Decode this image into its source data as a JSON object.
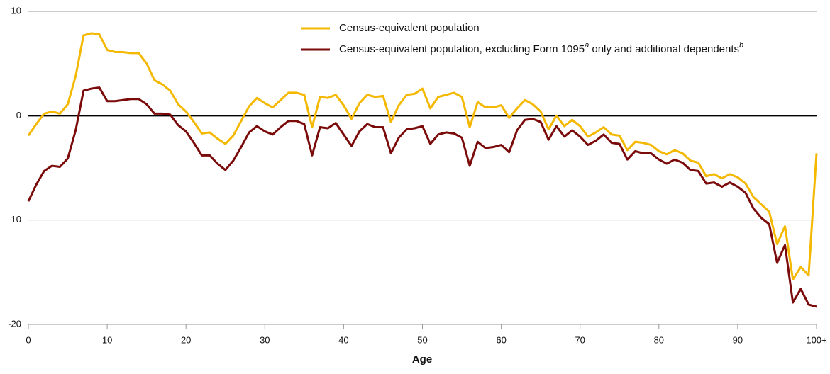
{
  "chart_data": {
    "type": "line",
    "xlabel": "Age",
    "x": [
      0,
      1,
      2,
      3,
      4,
      5,
      6,
      7,
      8,
      9,
      10,
      11,
      12,
      13,
      14,
      15,
      16,
      17,
      18,
      19,
      20,
      21,
      22,
      23,
      24,
      25,
      26,
      27,
      28,
      29,
      30,
      31,
      32,
      33,
      34,
      35,
      36,
      37,
      38,
      39,
      40,
      41,
      42,
      43,
      44,
      45,
      46,
      47,
      48,
      49,
      50,
      51,
      52,
      53,
      54,
      55,
      56,
      57,
      58,
      59,
      60,
      61,
      62,
      63,
      64,
      65,
      66,
      67,
      68,
      69,
      70,
      71,
      72,
      73,
      74,
      75,
      76,
      77,
      78,
      79,
      80,
      81,
      82,
      83,
      84,
      85,
      86,
      87,
      88,
      89,
      90,
      91,
      92,
      93,
      94,
      95,
      96,
      97,
      98,
      99,
      100
    ],
    "xlim": [
      0,
      100
    ],
    "xticks": [
      0,
      10,
      20,
      30,
      40,
      50,
      60,
      70,
      80,
      90,
      {
        "value": 100,
        "label": "100+"
      }
    ],
    "ylim": [
      -20,
      10
    ],
    "yticks": [
      -20,
      -10,
      0,
      10
    ],
    "grid": true,
    "series": [
      {
        "name": [
          "Census-equivalent population"
        ],
        "color": "#f5b800",
        "values": [
          -1.9,
          -0.8,
          0.2,
          0.4,
          0.2,
          1.1,
          3.8,
          7.7,
          7.9,
          7.8,
          6.3,
          6.1,
          6.1,
          6.0,
          6.0,
          5.0,
          3.4,
          3.0,
          2.4,
          1.1,
          0.4,
          -0.6,
          -1.7,
          -1.6,
          -2.2,
          -2.7,
          -1.9,
          -0.5,
          0.9,
          1.7,
          1.2,
          0.8,
          1.5,
          2.2,
          2.2,
          2.0,
          -1.1,
          1.8,
          1.7,
          2.0,
          1.0,
          -0.3,
          1.2,
          2.0,
          1.8,
          1.9,
          -0.6,
          1.0,
          2.0,
          2.1,
          2.6,
          0.7,
          1.8,
          2.0,
          2.2,
          1.8,
          -1.1,
          1.3,
          0.8,
          0.8,
          1.0,
          -0.2,
          0.7,
          1.5,
          1.1,
          0.4,
          -1.3,
          0.0,
          -1.0,
          -0.4,
          -1.0,
          -2.0,
          -1.6,
          -1.1,
          -1.8,
          -1.9,
          -3.3,
          -2.5,
          -2.6,
          -2.8,
          -3.4,
          -3.7,
          -3.3,
          -3.6,
          -4.3,
          -4.5,
          -5.8,
          -5.6,
          -6.0,
          -5.6,
          -5.9,
          -6.5,
          -7.8,
          -8.5,
          -9.2,
          -12.3,
          -10.6,
          -15.7,
          -14.5,
          -15.3,
          -3.6
        ]
      },
      {
        "name": [
          "Census-equivalent population, excluding Form 1095",
          {
            "sup": "a"
          },
          " only and additional dependents",
          {
            "sup": "b"
          }
        ],
        "color": "#7b0a0a",
        "values": [
          -8.2,
          -6.6,
          -5.3,
          -4.8,
          -4.9,
          -4.1,
          -1.4,
          2.4,
          2.6,
          2.7,
          1.4,
          1.4,
          1.5,
          1.6,
          1.6,
          1.1,
          0.2,
          0.2,
          0.1,
          -0.9,
          -1.5,
          -2.6,
          -3.8,
          -3.8,
          -4.6,
          -5.2,
          -4.3,
          -3.0,
          -1.6,
          -1.0,
          -1.5,
          -1.8,
          -1.1,
          -0.5,
          -0.5,
          -0.8,
          -3.8,
          -1.1,
          -1.2,
          -0.7,
          -1.8,
          -2.9,
          -1.5,
          -0.8,
          -1.1,
          -1.1,
          -3.6,
          -2.1,
          -1.3,
          -1.2,
          -1.0,
          -2.7,
          -1.8,
          -1.6,
          -1.7,
          -2.1,
          -4.8,
          -2.5,
          -3.1,
          -3.0,
          -2.8,
          -3.5,
          -1.4,
          -0.4,
          -0.3,
          -0.6,
          -2.3,
          -1.0,
          -2.0,
          -1.4,
          -2.0,
          -2.8,
          -2.4,
          -1.8,
          -2.6,
          -2.7,
          -4.2,
          -3.4,
          -3.6,
          -3.6,
          -4.2,
          -4.6,
          -4.2,
          -4.5,
          -5.2,
          -5.3,
          -6.5,
          -6.4,
          -6.8,
          -6.4,
          -6.8,
          -7.4,
          -8.9,
          -9.8,
          -10.4,
          -14.1,
          -12.4,
          -17.9,
          -16.6,
          -18.1,
          -18.3
        ]
      }
    ]
  }
}
